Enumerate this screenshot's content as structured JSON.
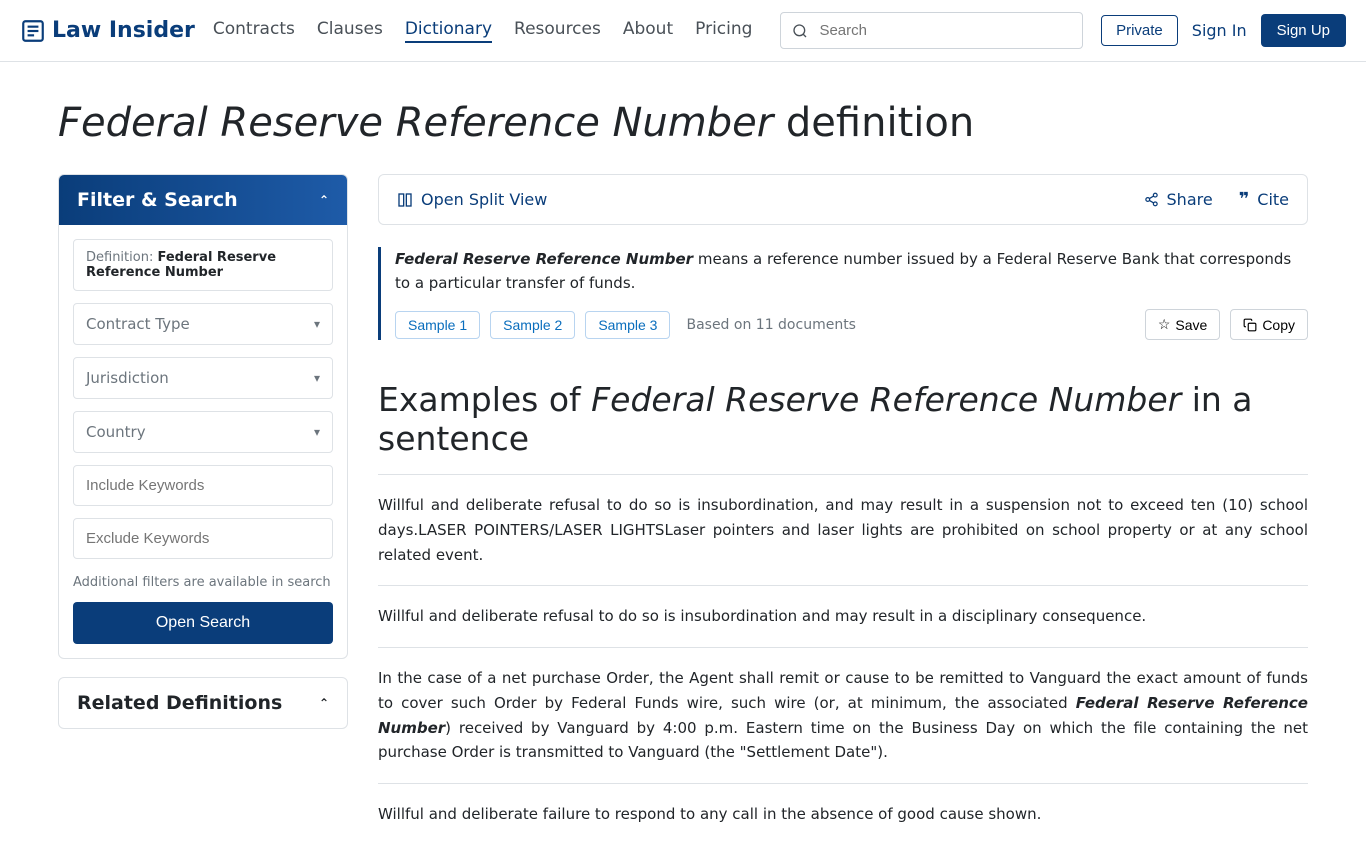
{
  "header": {
    "logo_text": "Law Insider",
    "nav": [
      "Contracts",
      "Clauses",
      "Dictionary",
      "Resources",
      "About",
      "Pricing"
    ],
    "nav_active_index": 2,
    "search_placeholder": "Search",
    "private_btn": "Private",
    "signin": "Sign In",
    "signup": "Sign Up"
  },
  "title": {
    "term": "Federal Reserve Reference Number",
    "suffix": " definition"
  },
  "filter": {
    "title": "Filter & Search",
    "def_label": "Definition: ",
    "def_value": "Federal Reserve Reference Number",
    "selects": [
      "Contract Type",
      "Jurisdiction",
      "Country"
    ],
    "inputs": [
      "Include Keywords",
      "Exclude Keywords"
    ],
    "note": "Additional filters are available in search",
    "open_btn": "Open Search"
  },
  "related": {
    "title": "Related Definitions"
  },
  "toolbar": {
    "open_split": "Open Split View",
    "share": "Share",
    "cite": "Cite"
  },
  "definition": {
    "term": "Federal Reserve Reference Number",
    "text": " means a reference number issued by a Federal Reserve Bank that corresponds to a particular transfer of funds.",
    "samples": [
      "Sample 1",
      "Sample 2",
      "Sample 3"
    ],
    "based_on": "Based on 11 documents",
    "save": "Save",
    "copy": "Copy"
  },
  "examples": {
    "title_prefix": "Examples of ",
    "title_term": "Federal Reserve Reference Number",
    "title_suffix": " in a sentence",
    "items": [
      {
        "pre": "Willful and deliberate refusal to do so is insubordination, and may result in a suspension not to exceed ten (10) school days.LASER POINTERS/LASER LIGHTSLaser pointers and laser lights are prohibited on school property or at any school related event.",
        "term": "",
        "post": ""
      },
      {
        "pre": "Willful and deliberate refusal to do so is insubordination and may result in a disciplinary consequence.",
        "term": "",
        "post": ""
      },
      {
        "pre": "In the case of a net purchase Order, the Agent shall remit or cause to be remitted to Vanguard the exact amount of funds to cover such Order by Federal Funds wire, such wire (or, at minimum, the associated ",
        "term": "Federal Reserve Reference Number",
        "post": ") received by Vanguard by 4:00 p.m. Eastern time on the Business Day on which the file containing the net purchase Order is transmitted to Vanguard (the \"Settlement Date\")."
      },
      {
        "pre": "Willful and deliberate failure to respond to any call in the absence of good cause shown.",
        "term": "",
        "post": ""
      }
    ]
  },
  "colors": {
    "primary": "#0a3d7a",
    "link": "#0a6ebd",
    "border": "#dee2e6",
    "muted": "#6c757d"
  }
}
